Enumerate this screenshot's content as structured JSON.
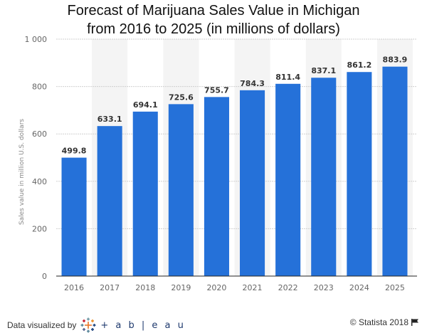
{
  "chart_data": {
    "type": "bar",
    "title": "Forecast of Marijuana Sales Value in Michigan from 2016 to 2025 (in millions of dollars)",
    "title_lines": [
      "Forecast of Marijuana Sales Value in Michigan",
      "from 2016 to 2025 (in millions of dollars)"
    ],
    "xlabel": "",
    "ylabel": "Sales value in million U.S. dollars",
    "categories": [
      "2016",
      "2017",
      "2018",
      "2019",
      "2020",
      "2021",
      "2022",
      "2023",
      "2024",
      "2025"
    ],
    "values": [
      499.8,
      633.1,
      694.1,
      725.6,
      755.7,
      784.3,
      811.4,
      837.1,
      861.2,
      883.9
    ],
    "data_labels": [
      "499.8",
      "633.1",
      "694.1",
      "725.6",
      "755.7",
      "784.3",
      "811.4",
      "837.1",
      "861.2",
      "883.9"
    ],
    "ylim": [
      0,
      1000
    ],
    "yticks": [
      0,
      200,
      400,
      600,
      800,
      1000
    ],
    "ytick_labels": [
      "0",
      "200",
      "400",
      "600",
      "800",
      "1 000"
    ],
    "grid": true,
    "legend": "none",
    "colors": {
      "bar": "#2571d9",
      "band": "#f4f4f4",
      "grid": "#d0d0d0",
      "axis": "#222222",
      "label": "#333333",
      "tick": "#666666"
    }
  },
  "footer": {
    "visualized_by": "Data visualized by",
    "tableau_word": "+ a b | e a u",
    "copyright": "© Statista 2018"
  }
}
